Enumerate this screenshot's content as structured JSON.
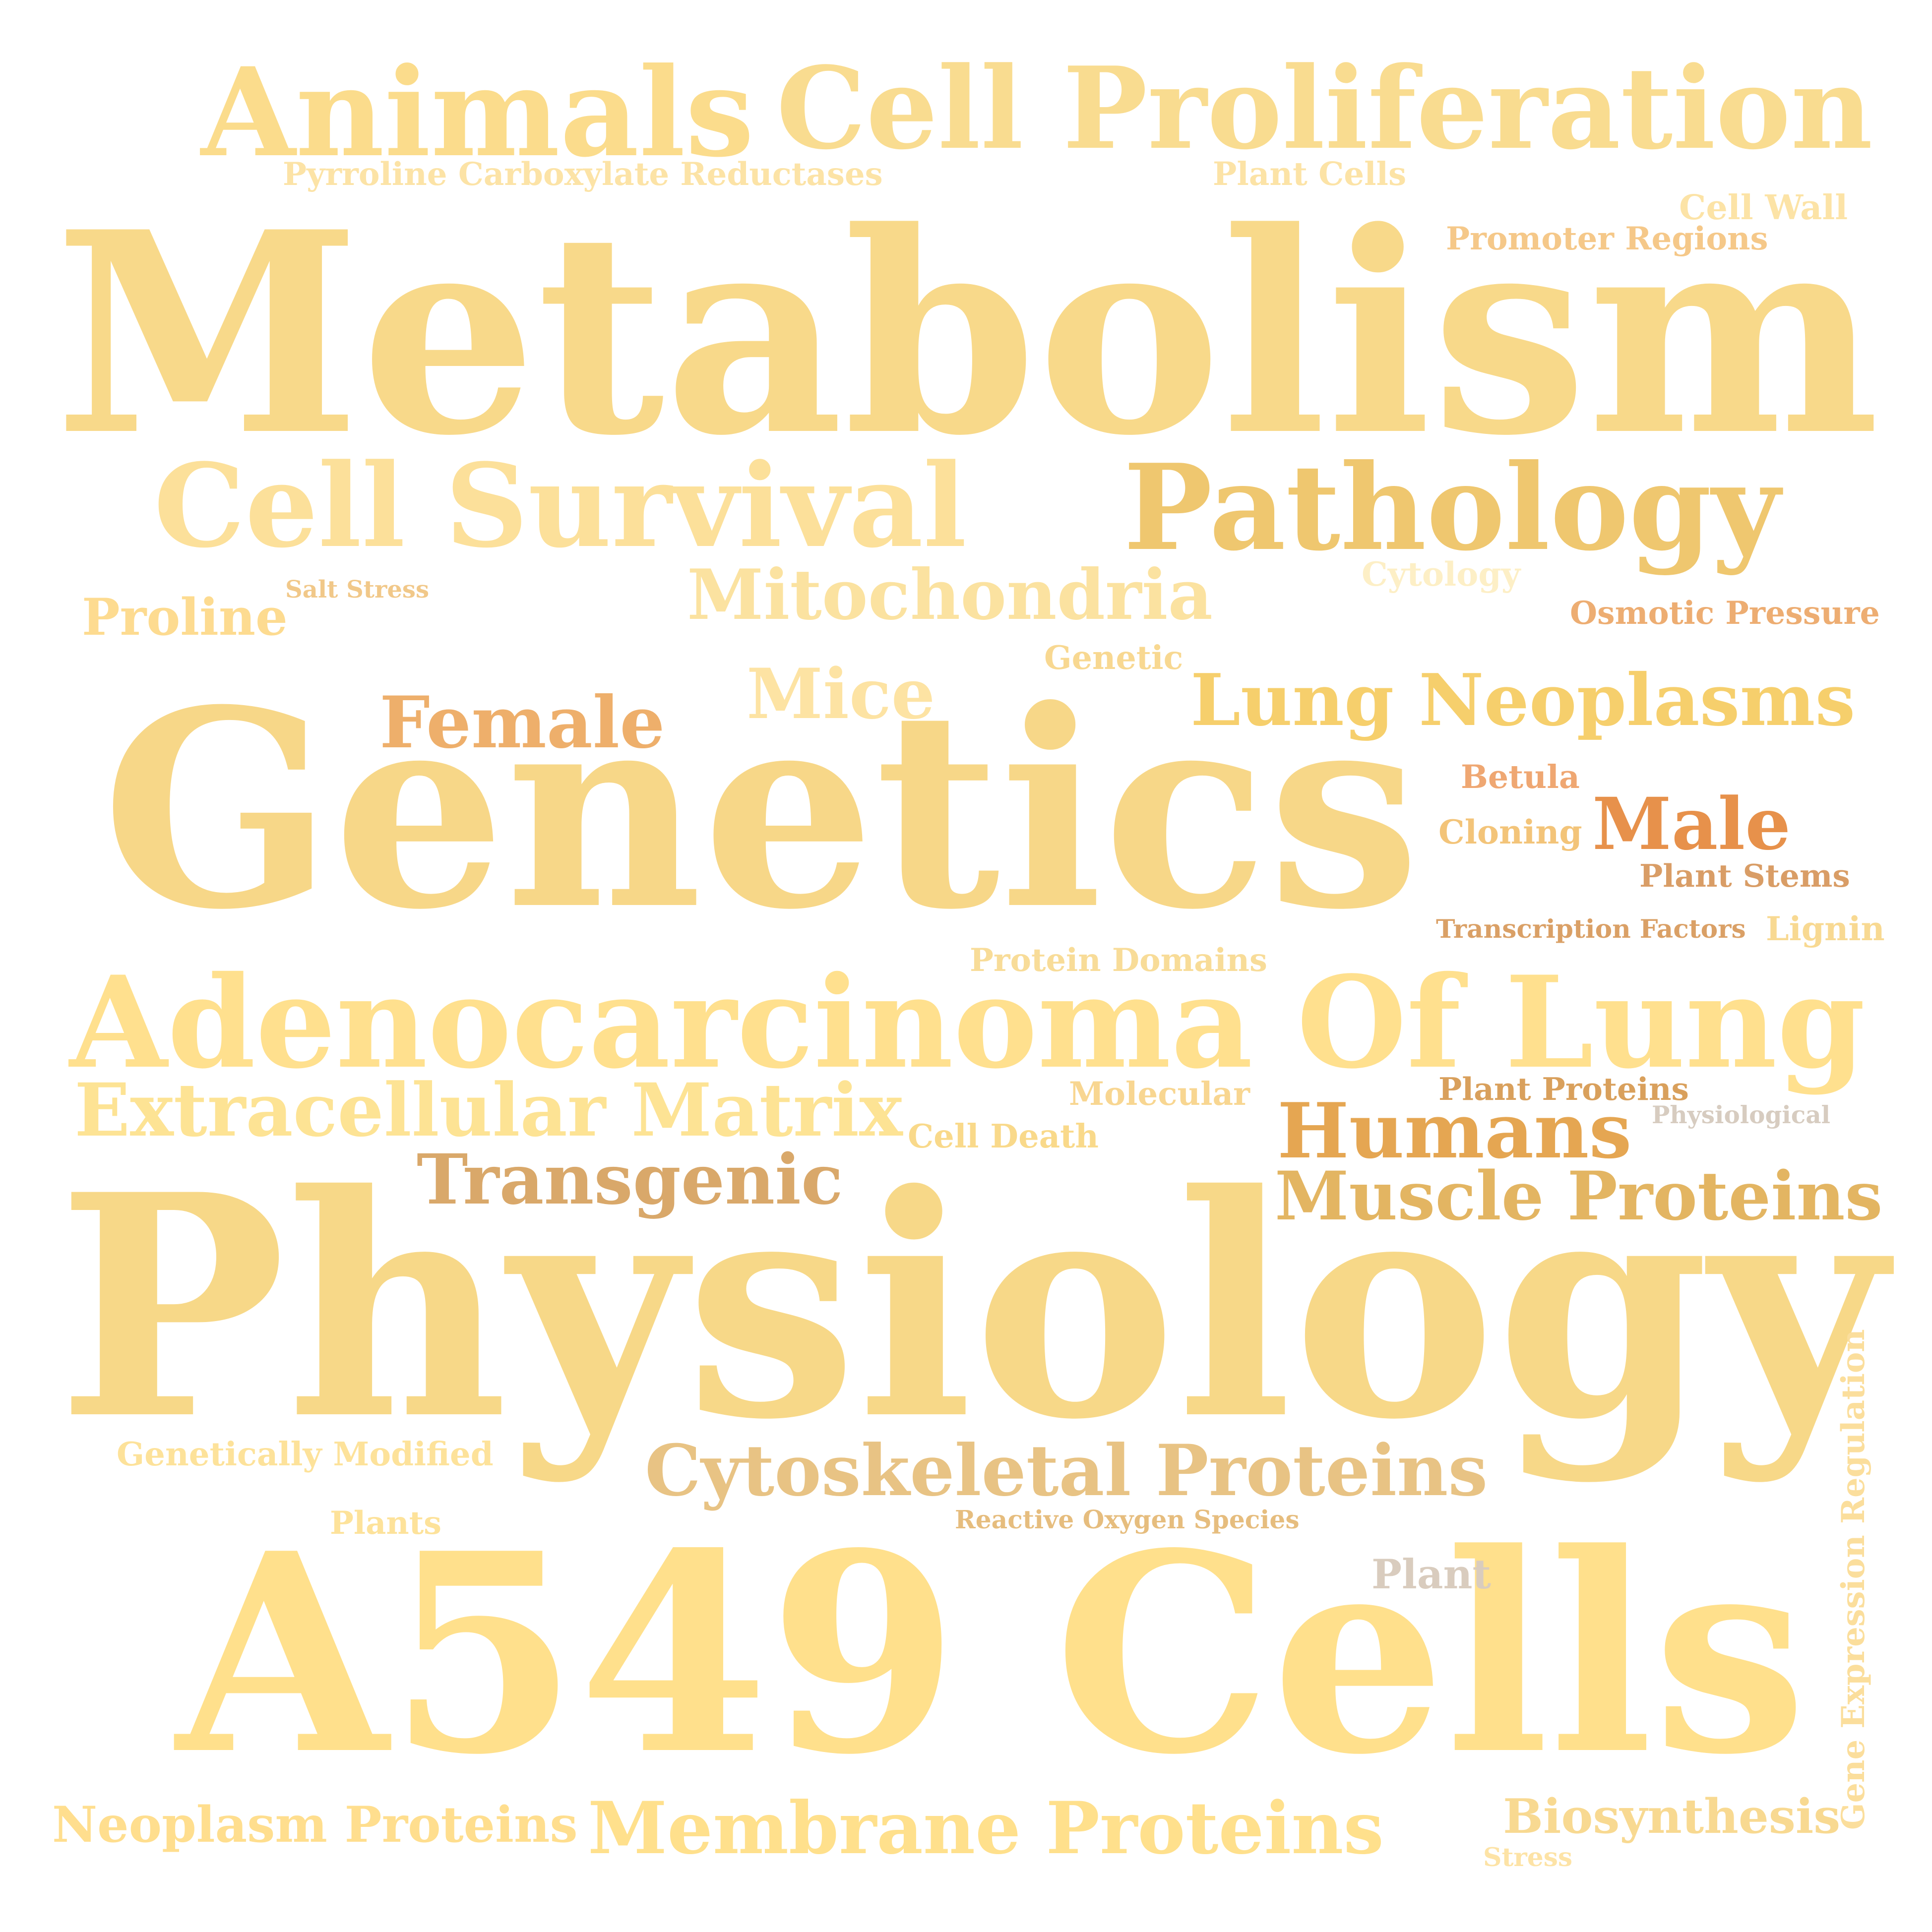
{
  "words": [
    {
      "id": "metabolism",
      "text": "Metabolism",
      "color": "#F8D98A"
    },
    {
      "id": "genetics",
      "text": "Genetics",
      "color": "#F7D788"
    },
    {
      "id": "physiology",
      "text": "Physiology",
      "color": "#F7D888"
    },
    {
      "id": "a549-cells",
      "text": "A549 Cells",
      "color": "#FFE08C"
    },
    {
      "id": "animals",
      "text": "Animals",
      "color": "#FBDC8C"
    },
    {
      "id": "cell-proliferation",
      "text": "Cell Proliferation",
      "color": "#F9DC90"
    },
    {
      "id": "cell-survival",
      "text": "Cell Survival",
      "color": "#FCE09A"
    },
    {
      "id": "pathology",
      "text": "Pathology",
      "color": "#EFC76F"
    },
    {
      "id": "adenocarcinoma-of-lung",
      "text": "Adenocarcinoma Of Lung",
      "color": "#FFE08E"
    },
    {
      "id": "extracellular-matrix",
      "text": "Extracellular Matrix",
      "color": "#FDE394"
    },
    {
      "id": "mitochondria",
      "text": "Mitochondria",
      "color": "#FBE2A0"
    },
    {
      "id": "lung-neoplasms",
      "text": "Lung Neoplasms",
      "color": "#F6CF6C"
    },
    {
      "id": "female",
      "text": "Female",
      "color": "#EEAF6B"
    },
    {
      "id": "mice",
      "text": "Mice",
      "color": "#FDE3A3"
    },
    {
      "id": "transgenic",
      "text": "Transgenic",
      "color": "#D9A86A"
    },
    {
      "id": "humans",
      "text": "Humans",
      "color": "#E5A652"
    },
    {
      "id": "muscle-proteins",
      "text": "Muscle Proteins",
      "color": "#E3B562"
    },
    {
      "id": "cytoskeletal-proteins",
      "text": "Cytoskeletal Proteins",
      "color": "#E8C384"
    },
    {
      "id": "membrane-proteins",
      "text": "Membrane Proteins",
      "color": "#FFE08C"
    },
    {
      "id": "neoplasm-proteins",
      "text": "Neoplasm Proteins",
      "color": "#FFDE8E"
    },
    {
      "id": "biosynthesis",
      "text": "Biosynthesis",
      "color": "#F8D991"
    },
    {
      "id": "male",
      "text": "Male",
      "color": "#E7914B"
    },
    {
      "id": "proline",
      "text": "Proline",
      "color": "#FDDB90"
    },
    {
      "id": "pyrroline-carboxylate-reductases",
      "text": "Pyrroline Carboxylate Reductases",
      "color": "#FCE3A6"
    },
    {
      "id": "plant-cells",
      "text": "Plant Cells",
      "color": "#FCE3A6"
    },
    {
      "id": "cell-wall",
      "text": "Cell Wall",
      "color": "#FCE3A6"
    },
    {
      "id": "promoter-regions",
      "text": "Promoter Regions",
      "color": "#F5C889"
    },
    {
      "id": "salt-stress",
      "text": "Salt Stress",
      "color": "#F1C889"
    },
    {
      "id": "cytology",
      "text": "Cytology",
      "color": "#FDEFC6"
    },
    {
      "id": "osmotic-pressure",
      "text": "Osmotic Pressure",
      "color": "#EDAD72"
    },
    {
      "id": "genetic",
      "text": "Genetic",
      "color": "#F8D891"
    },
    {
      "id": "betula",
      "text": "Betula",
      "color": "#EFA772"
    },
    {
      "id": "cloning",
      "text": "Cloning",
      "color": "#F3C479"
    },
    {
      "id": "plant-stems",
      "text": "Plant Stems",
      "color": "#D99D66"
    },
    {
      "id": "transcription-factors",
      "text": "Transcription Factors",
      "color": "#DAA066"
    },
    {
      "id": "lignin",
      "text": "Lignin",
      "color": "#F8D992"
    },
    {
      "id": "protein-domains",
      "text": "Protein Domains",
      "color": "#F8DC98"
    },
    {
      "id": "molecular",
      "text": "Molecular",
      "color": "#F8D691"
    },
    {
      "id": "plant-proteins",
      "text": "Plant Proteins",
      "color": "#D9A05C"
    },
    {
      "id": "physiological",
      "text": "Physiological",
      "color": "#D7CCC0"
    },
    {
      "id": "cell-death",
      "text": "Cell Death",
      "color": "#F9D98A"
    },
    {
      "id": "genetically-modified",
      "text": "Genetically Modified",
      "color": "#FDE29A"
    },
    {
      "id": "plants",
      "text": "Plants",
      "color": "#FDE29A"
    },
    {
      "id": "reactive-oxygen-species",
      "text": "Reactive Oxygen Species",
      "color": "#E6BD7E"
    },
    {
      "id": "plant",
      "text": "Plant",
      "color": "#D9CCBE"
    },
    {
      "id": "gene-expression-regulation",
      "text": "Gene Expression Regulation",
      "color": "#FBDE9C"
    },
    {
      "id": "stress",
      "text": "Stress",
      "color": "#FDE3A6"
    }
  ]
}
